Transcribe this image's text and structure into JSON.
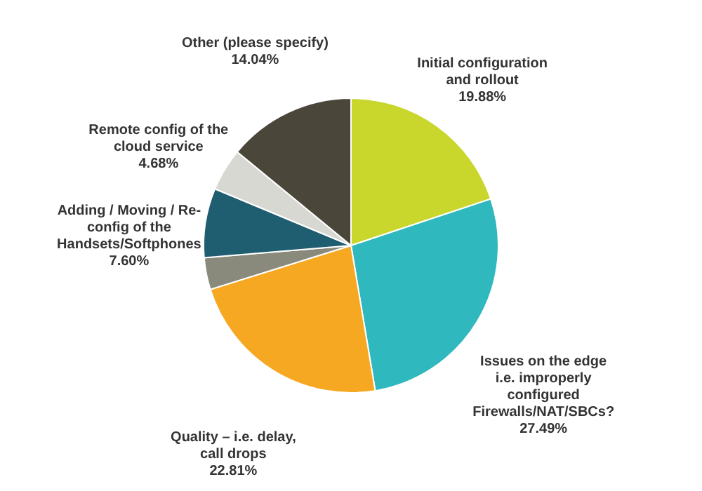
{
  "chart_data": {
    "type": "pie",
    "categories": [
      "Initial configuration and rollout",
      "Issues on the edge i.e. improperly configured Firewalls/NAT/SBCs?",
      "Quality – i.e. delay, call drops",
      null,
      "Adding / Moving / Re-config of the Handsets/Softphones",
      "Remote config of the cloud service",
      "Other (please specify)"
    ],
    "values": [
      19.88,
      27.49,
      22.81,
      3.5,
      7.6,
      4.68,
      14.04
    ],
    "value_labels": [
      "19.88%",
      "27.49%",
      "22.81%",
      null,
      "7.60%",
      "4.68%",
      "14.04%"
    ],
    "colors": [
      "#c9d62c",
      "#2fb8bd",
      "#f7a823",
      "#8a8a7c",
      "#1f5d70",
      "#d8d8d2",
      "#4b463a"
    ]
  }
}
